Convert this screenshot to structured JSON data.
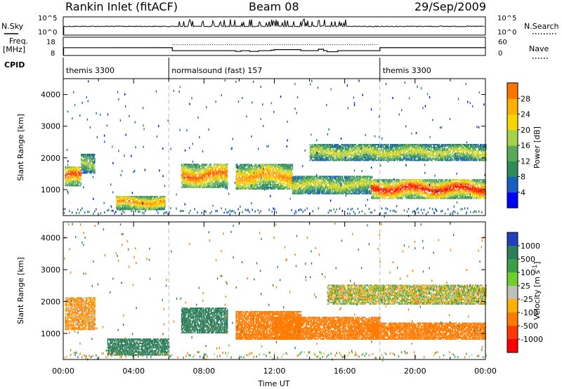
{
  "header": {
    "station": "Rankin Inlet (fitACF)",
    "beam": "Beam 08",
    "date": "29/Sep/2009"
  },
  "summary_panels": {
    "nsky_label": "N.Sky",
    "nsky_ticks": [
      "10^5",
      "10^0"
    ],
    "nsearch_label": "N.Search",
    "nsearch_ticks": [
      "10^5",
      "10^0"
    ],
    "freq_label": "Freq.",
    "freq_unit": "[MHz]",
    "freq_ticks": [
      "18",
      "8"
    ],
    "nave_label": "Nave",
    "nave_ticks": [
      "60",
      "0"
    ],
    "cpid_label": "CPID",
    "cpid_segments": [
      {
        "start_h": 0,
        "end_h": 6,
        "label": "themis 3300"
      },
      {
        "start_h": 6,
        "end_h": 18,
        "label": "normalsound (fast) 157"
      },
      {
        "start_h": 18,
        "end_h": 24,
        "label": "themis 3300"
      }
    ]
  },
  "chart_data": [
    {
      "type": "heatmap",
      "title": "",
      "xlabel": "",
      "ylabel": "Slant Range [km]",
      "xlim_hours": [
        0,
        24
      ],
      "ylim_km": [
        180,
        4500
      ],
      "yticks": [
        "1000",
        "2000",
        "3000",
        "4000"
      ],
      "colorbar_label": "Power [dB]",
      "colorbar_ticks": [
        "4",
        "8",
        "12",
        "16",
        "20",
        "24",
        "28"
      ],
      "colorbar_range": [
        0,
        30
      ],
      "colorbar_colors": [
        "#0000ff",
        "#1560c0",
        "#2e8b57",
        "#5aa85a",
        "#a8d04a",
        "#f5d800",
        "#ffb000",
        "#ff7400",
        "#ff3000",
        "#ff0000"
      ],
      "echo_regions": [
        {
          "t0": 0.1,
          "t1": 1.0,
          "r0": 1100,
          "r1": 1700,
          "peak_db": 26
        },
        {
          "t0": 1.0,
          "t1": 1.8,
          "r0": 1500,
          "r1": 2100,
          "peak_db": 14
        },
        {
          "t0": 3.0,
          "t1": 5.8,
          "r0": 350,
          "r1": 800,
          "peak_db": 22
        },
        {
          "t0": 6.7,
          "t1": 9.3,
          "r0": 1050,
          "r1": 1800,
          "peak_db": 24
        },
        {
          "t0": 9.8,
          "t1": 13.0,
          "r0": 1000,
          "r1": 1800,
          "peak_db": 22
        },
        {
          "t0": 13.0,
          "t1": 17.5,
          "r0": 850,
          "r1": 1400,
          "peak_db": 16
        },
        {
          "t0": 14.0,
          "t1": 24.0,
          "r0": 1900,
          "r1": 2400,
          "peak_db": 16
        },
        {
          "t0": 17.5,
          "t1": 24.0,
          "r0": 700,
          "r1": 1300,
          "peak_db": 28
        }
      ]
    },
    {
      "type": "heatmap",
      "title": "",
      "xlabel": "Time UT",
      "ylabel": "Slant Range [km]",
      "xlim_hours": [
        0,
        24
      ],
      "xticks": [
        "00:00",
        "04:00",
        "08:00",
        "12:00",
        "16:00",
        "20:00",
        "00:00"
      ],
      "ylim_km": [
        180,
        4500
      ],
      "yticks": [
        "1000",
        "2000",
        "3000",
        "4000"
      ],
      "colorbar_label": "Velocity [m s^-1]",
      "colorbar_ticks": [
        "1000",
        "500",
        "100",
        "25",
        "-25",
        "-100",
        "-500",
        "-1000"
      ],
      "colorbar_colors": [
        "#1f3fbf",
        "#2e7d5a",
        "#3a9f46",
        "#6ed02a",
        "#c0c0b8",
        "#ffb000",
        "#ff7a00",
        "#ff3a00",
        "#ff0000"
      ],
      "echo_regions": [
        {
          "t0": 0.1,
          "t1": 1.8,
          "r0": 1100,
          "r1": 2100,
          "velocity": -100
        },
        {
          "t0": 2.5,
          "t1": 6.0,
          "r0": 300,
          "r1": 800,
          "velocity": 500
        },
        {
          "t0": 6.7,
          "t1": 9.3,
          "r0": 1000,
          "r1": 1800,
          "velocity": 500
        },
        {
          "t0": 9.8,
          "t1": 13.5,
          "r0": 800,
          "r1": 1700,
          "velocity": -300
        },
        {
          "t0": 12.0,
          "t1": 18.0,
          "r0": 800,
          "r1": 1500,
          "velocity": -300
        },
        {
          "t0": 15.0,
          "t1": 24.0,
          "r0": 1900,
          "r1": 2500,
          "velocity": 0
        },
        {
          "t0": 17.5,
          "t1": 24.0,
          "r0": 800,
          "r1": 1300,
          "velocity": -300
        }
      ]
    }
  ]
}
